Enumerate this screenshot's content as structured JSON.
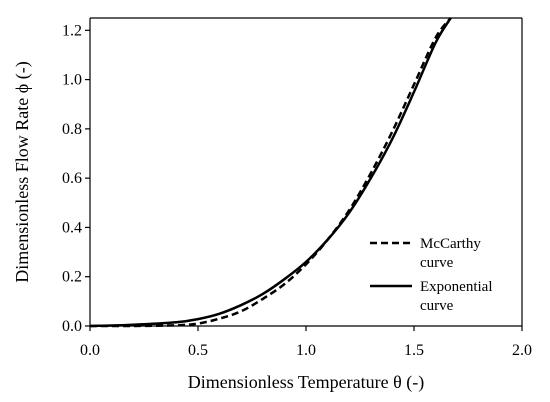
{
  "chart_data": {
    "type": "line",
    "xlabel": "Dimensionless Temperature θ (-)",
    "ylabel": "Dimensionless Flow Rate   ϕ (-)",
    "xlim": [
      0,
      2
    ],
    "ylim": [
      0,
      1.25
    ],
    "xticks": [
      "0.0",
      "0.5",
      "1.0",
      "1.5",
      "2.0"
    ],
    "yticks": [
      "0.0",
      "0.2",
      "0.4",
      "0.6",
      "0.8",
      "1.0",
      "1.2"
    ],
    "grid": false,
    "legend_position": "right",
    "series": [
      {
        "name": "McCarthy curve",
        "style": "dashed",
        "color": "#000000",
        "x": [
          0.0,
          0.2,
          0.4,
          0.5,
          0.6,
          0.7,
          0.8,
          0.9,
          1.0,
          1.1,
          1.2,
          1.3,
          1.4,
          1.5,
          1.6,
          1.67
        ],
        "y": [
          0.0,
          0.0,
          0.003,
          0.01,
          0.03,
          0.06,
          0.11,
          0.17,
          0.25,
          0.35,
          0.47,
          0.62,
          0.79,
          0.98,
          1.17,
          1.25
        ]
      },
      {
        "name": "Exponential curve",
        "style": "solid",
        "color": "#000000",
        "x": [
          0.0,
          0.2,
          0.4,
          0.5,
          0.6,
          0.7,
          0.8,
          0.9,
          1.0,
          1.1,
          1.2,
          1.3,
          1.4,
          1.5,
          1.6,
          1.67
        ],
        "y": [
          0.0,
          0.005,
          0.015,
          0.028,
          0.05,
          0.085,
          0.13,
          0.19,
          0.26,
          0.35,
          0.46,
          0.6,
          0.76,
          0.95,
          1.15,
          1.25
        ]
      }
    ],
    "legend": [
      {
        "line1": "McCarthy",
        "line2": "curve"
      },
      {
        "line1": "Exponential",
        "line2": "curve"
      }
    ]
  }
}
